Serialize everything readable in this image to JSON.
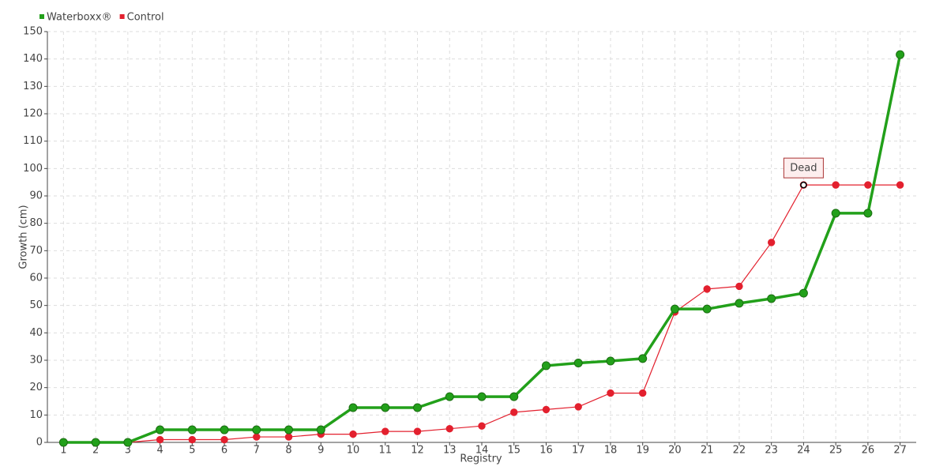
{
  "chart_data": {
    "type": "line",
    "x_label": "Registry",
    "y_label": "Growth (cm)",
    "categories": [
      "1",
      "2",
      "3",
      "4",
      "5",
      "6",
      "7",
      "8",
      "9",
      "10",
      "11",
      "12",
      "13",
      "14",
      "15",
      "16",
      "17",
      "18",
      "19",
      "20",
      "21",
      "22",
      "23",
      "24",
      "25",
      "26",
      "27"
    ],
    "series": [
      {
        "name": "Waterboxx®",
        "color": "#22a01a",
        "values": [
          0,
          0,
          0,
          4.6,
          4.6,
          4.6,
          4.6,
          4.6,
          4.6,
          12.7,
          12.7,
          12.7,
          16.7,
          16.7,
          16.7,
          28,
          29,
          29.7,
          30.6,
          48.7,
          48.7,
          50.8,
          52.5,
          54.5,
          83.7,
          83.7,
          141.6
        ]
      },
      {
        "name": "Control",
        "color": "#e3202e",
        "values": [
          0,
          0,
          0,
          1,
          1,
          1,
          2,
          2,
          3,
          3,
          4,
          4,
          5,
          6,
          11,
          12,
          13,
          18,
          18,
          47.6,
          56,
          57,
          73,
          94,
          94,
          94,
          94
        ]
      }
    ],
    "annotations": [
      {
        "text": "Dead",
        "x": "24",
        "y": 94
      }
    ],
    "ylim": [
      0,
      150
    ],
    "yticks": [
      0,
      10,
      20,
      30,
      40,
      50,
      60,
      70,
      80,
      90,
      100,
      110,
      120,
      130,
      140,
      150
    ],
    "grid": true,
    "legend": "top-left"
  }
}
